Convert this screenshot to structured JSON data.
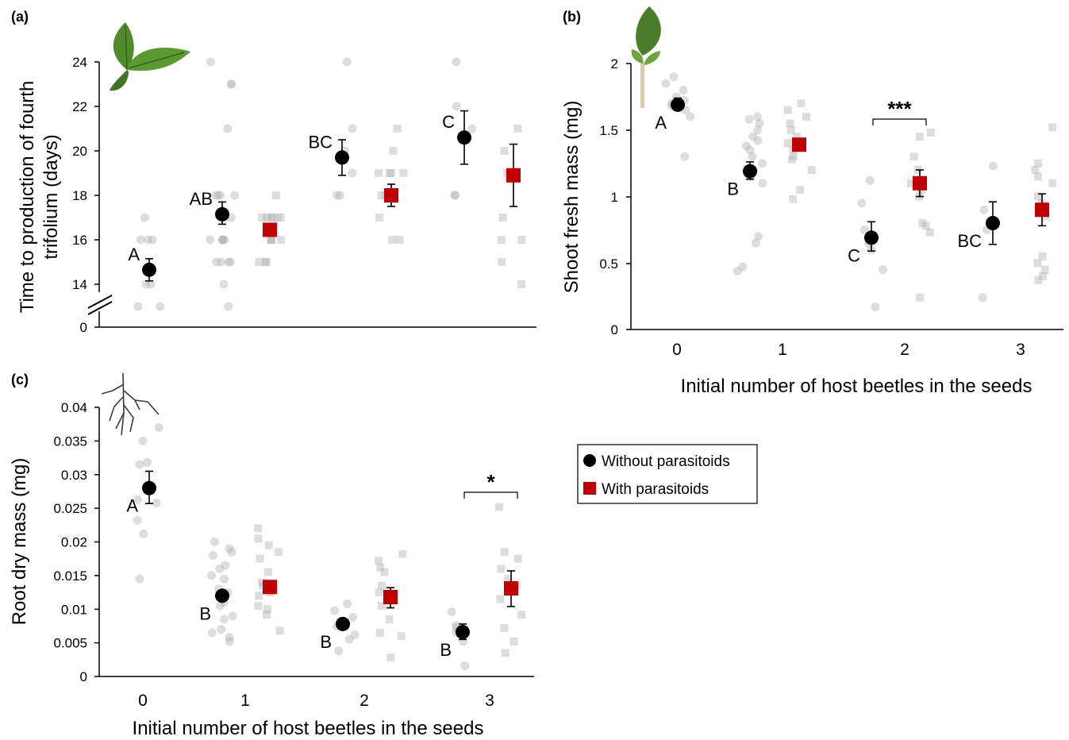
{
  "colors": {
    "without": "#000000",
    "with": "#c00000",
    "raw_points": "#b4b4b4"
  },
  "legend": {
    "without_label": "Without parasitoids",
    "with_label": "With parasitoids"
  },
  "icons": [
    "trifoliate-leaf-icon",
    "shoot-icon",
    "root-icon"
  ],
  "chart_data": [
    {
      "id": "a",
      "panel_label": "(a)",
      "type": "scatter",
      "ylabel": "Time to production of fourth trifolium (days)",
      "ylabel_lines": [
        "Time to production of fourth",
        "trifolium (days)"
      ],
      "xlabel": "",
      "x_ticks": [],
      "y_ticks": [
        "0",
        "14",
        "16",
        "18",
        "20",
        "22",
        "24"
      ],
      "ylim": [
        13,
        24
      ],
      "axis_break": true,
      "groups": [
        {
          "beetles": 0,
          "series": "without",
          "mean": 14.65,
          "err_low": 14.15,
          "err_high": 15.15,
          "letter": "A",
          "sig": "",
          "points": [
            13,
            13,
            14,
            14,
            16,
            16,
            16,
            17
          ]
        },
        {
          "beetles": 1,
          "series": "without",
          "mean": 17.15,
          "err_low": 16.7,
          "err_high": 17.7,
          "letter": "AB",
          "sig": "",
          "points": [
            13,
            14,
            15,
            15,
            15,
            15,
            16,
            16,
            16,
            16,
            16,
            17,
            17,
            17,
            18,
            18,
            18,
            18,
            21,
            23,
            23,
            24
          ]
        },
        {
          "beetles": 1,
          "series": "with",
          "mean": 16.45,
          "err_low": 16.45,
          "err_high": 16.45,
          "letter": "",
          "sig": "",
          "points": [
            15,
            15,
            15,
            16,
            16,
            16,
            16,
            17,
            17,
            17,
            17,
            17,
            17,
            18
          ]
        },
        {
          "beetles": 2,
          "series": "without",
          "mean": 19.7,
          "err_low": 18.9,
          "err_high": 20.5,
          "letter": "BC",
          "sig": "",
          "points": [
            18,
            18,
            19,
            20,
            21,
            24
          ]
        },
        {
          "beetles": 2,
          "series": "with",
          "mean": 18.0,
          "err_low": 17.5,
          "err_high": 18.5,
          "letter": "",
          "sig": "",
          "points": [
            16,
            16,
            17,
            18,
            18,
            19,
            19,
            19,
            19,
            20,
            21
          ]
        },
        {
          "beetles": 3,
          "series": "without",
          "mean": 20.6,
          "err_low": 19.4,
          "err_high": 21.8,
          "letter": "C",
          "sig": "",
          "points": [
            18,
            18,
            21,
            22,
            24
          ]
        },
        {
          "beetles": 3,
          "series": "with",
          "mean": 18.9,
          "err_low": 17.5,
          "err_high": 20.3,
          "letter": "",
          "sig": "",
          "points": [
            14,
            15,
            16,
            16,
            17,
            19,
            20,
            21
          ]
        }
      ]
    },
    {
      "id": "b",
      "panel_label": "(b)",
      "type": "scatter",
      "ylabel": "Shoot fresh mass (mg)",
      "xlabel": "Initial number of host beetles in the seeds",
      "x_ticks": [
        "0",
        "1",
        "2",
        "3"
      ],
      "y_ticks": [
        "0",
        "0.5",
        "1",
        "1.5",
        "2"
      ],
      "ylim": [
        0,
        2
      ],
      "axis_break": false,
      "groups": [
        {
          "beetles": 0,
          "series": "without",
          "mean": 1.69,
          "err_low": 1.65,
          "err_high": 1.74,
          "letter": "A",
          "sig": "",
          "points": [
            1.3,
            1.6,
            1.65,
            1.68,
            1.7,
            1.72,
            1.75,
            1.8,
            1.85,
            1.9
          ]
        },
        {
          "beetles": 1,
          "series": "without",
          "mean": 1.19,
          "err_low": 1.13,
          "err_high": 1.26,
          "letter": "B",
          "sig": "",
          "points": [
            0.44,
            0.47,
            0.65,
            0.7,
            1.1,
            1.15,
            1.2,
            1.25,
            1.3,
            1.35,
            1.38,
            1.42,
            1.45,
            1.5,
            1.55,
            1.58,
            1.6
          ]
        },
        {
          "beetles": 1,
          "series": "with",
          "mean": 1.39,
          "err_low": 1.39,
          "err_high": 1.39,
          "letter": "",
          "sig": "",
          "points": [
            0.98,
            1.05,
            1.2,
            1.28,
            1.3,
            1.35,
            1.4,
            1.45,
            1.5,
            1.55,
            1.6,
            1.65,
            1.7
          ]
        },
        {
          "beetles": 2,
          "series": "without",
          "mean": 0.69,
          "err_low": 0.59,
          "err_high": 0.81,
          "letter": "C",
          "sig": "",
          "points": [
            0.17,
            0.45,
            0.6,
            0.65,
            0.7,
            0.75,
            0.95,
            1.12
          ]
        },
        {
          "beetles": 2,
          "series": "with",
          "mean": 1.1,
          "err_low": 1.0,
          "err_high": 1.2,
          "letter": "",
          "sig": "***",
          "points": [
            0.24,
            0.73,
            0.78,
            0.8,
            1.0,
            1.05,
            1.1,
            1.2,
            1.3,
            1.45,
            1.48
          ]
        },
        {
          "beetles": 3,
          "series": "without",
          "mean": 0.8,
          "err_low": 0.64,
          "err_high": 0.96,
          "letter": "BC",
          "sig": "",
          "points": [
            0.24,
            0.75,
            0.9,
            1.23
          ]
        },
        {
          "beetles": 3,
          "series": "with",
          "mean": 0.9,
          "err_low": 0.78,
          "err_high": 1.02,
          "letter": "",
          "sig": "",
          "points": [
            0.37,
            0.4,
            0.45,
            0.5,
            0.55,
            0.85,
            0.95,
            1.0,
            1.1,
            1.15,
            1.2,
            1.25,
            1.52
          ]
        }
      ]
    },
    {
      "id": "c",
      "panel_label": "(c)",
      "type": "scatter",
      "ylabel": "Root dry mass (mg)",
      "xlabel": "Initial number of host beetles in the seeds",
      "x_ticks": [
        "0",
        "1",
        "2",
        "3"
      ],
      "y_ticks": [
        "0",
        "0.005",
        "0.01",
        "0.015",
        "0.02",
        "0.025",
        "0.03",
        "0.035",
        "0.04"
      ],
      "ylim": [
        0,
        0.04
      ],
      "axis_break": false,
      "groups": [
        {
          "beetles": 0,
          "series": "without",
          "mean": 0.028,
          "err_low": 0.0257,
          "err_high": 0.0305,
          "letter": "A",
          "sig": "",
          "points": [
            0.0145,
            0.0212,
            0.0232,
            0.0258,
            0.0263,
            0.0315,
            0.0318,
            0.035,
            0.037
          ]
        },
        {
          "beetles": 1,
          "series": "without",
          "mean": 0.012,
          "err_low": 0.012,
          "err_high": 0.012,
          "letter": "B",
          "sig": "",
          "points": [
            0.0052,
            0.0058,
            0.0065,
            0.007,
            0.0085,
            0.009,
            0.0105,
            0.011,
            0.0125,
            0.013,
            0.0145,
            0.015,
            0.016,
            0.0165,
            0.018,
            0.0185,
            0.019,
            0.02
          ]
        },
        {
          "beetles": 1,
          "series": "with",
          "mean": 0.0133,
          "err_low": 0.0133,
          "err_high": 0.0133,
          "letter": "",
          "sig": "",
          "points": [
            0.0068,
            0.0092,
            0.01,
            0.0105,
            0.012,
            0.0125,
            0.0135,
            0.014,
            0.0155,
            0.0175,
            0.0185,
            0.0195,
            0.0205,
            0.022
          ]
        },
        {
          "beetles": 2,
          "series": "without",
          "mean": 0.0078,
          "err_low": 0.0071,
          "err_high": 0.0085,
          "letter": "B",
          "sig": "",
          "points": [
            0.0038,
            0.0055,
            0.0062,
            0.0075,
            0.0082,
            0.0088,
            0.0098,
            0.0108
          ]
        },
        {
          "beetles": 2,
          "series": "with",
          "mean": 0.0118,
          "err_low": 0.0102,
          "err_high": 0.0132,
          "letter": "",
          "sig": "",
          "points": [
            0.0028,
            0.006,
            0.0065,
            0.0085,
            0.0105,
            0.0125,
            0.0135,
            0.0155,
            0.0162,
            0.0172,
            0.0182
          ]
        },
        {
          "beetles": 3,
          "series": "without",
          "mean": 0.0066,
          "err_low": 0.0055,
          "err_high": 0.0078,
          "letter": "B",
          "sig": "",
          "points": [
            0.0016,
            0.0052,
            0.0065,
            0.0072,
            0.0076,
            0.0096
          ]
        },
        {
          "beetles": 3,
          "series": "with",
          "mean": 0.0131,
          "err_low": 0.0104,
          "err_high": 0.0157,
          "letter": "",
          "sig": "*",
          "points": [
            0.0035,
            0.0052,
            0.0072,
            0.0092,
            0.0115,
            0.0135,
            0.0145,
            0.016,
            0.0175,
            0.0185,
            0.0252
          ]
        }
      ]
    }
  ]
}
